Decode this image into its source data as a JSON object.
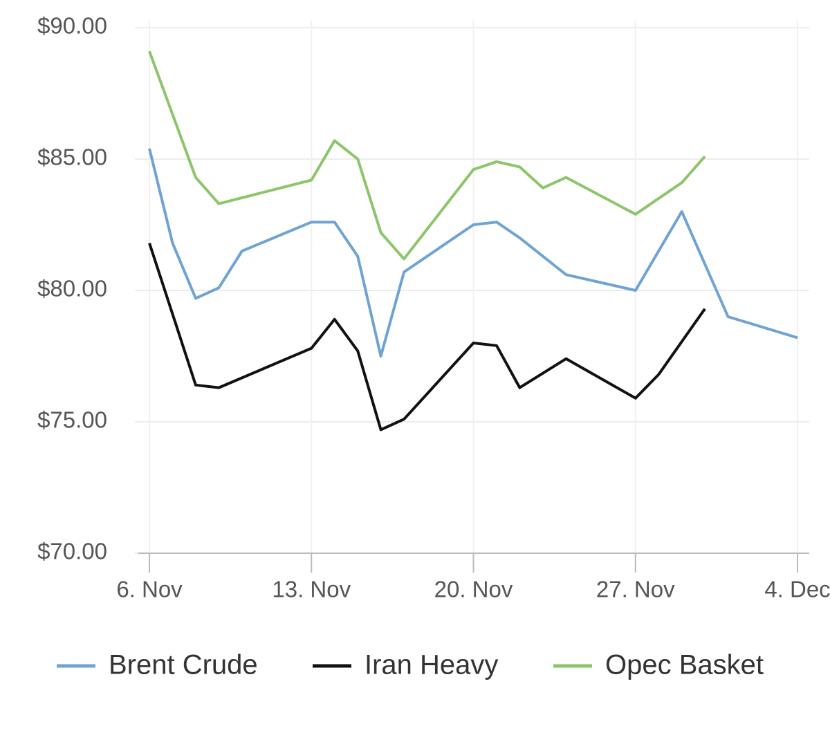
{
  "chart_data": {
    "type": "line",
    "ylim": [
      70,
      90
    ],
    "yticks": [
      {
        "value": 70,
        "label": "$70.00"
      },
      {
        "value": 75,
        "label": "$75.00"
      },
      {
        "value": 80,
        "label": "$80.00"
      },
      {
        "value": 85,
        "label": "$85.00"
      },
      {
        "value": 90,
        "label": "$90.00"
      }
    ],
    "xlim": [
      "11-06",
      "12-04"
    ],
    "xticks": [
      {
        "value": "11-06",
        "label": "6. Nov"
      },
      {
        "value": "11-13",
        "label": "13. Nov"
      },
      {
        "value": "11-20",
        "label": "20. Nov"
      },
      {
        "value": "11-27",
        "label": "27. Nov"
      },
      {
        "value": "12-04",
        "label": "4. Dec"
      }
    ],
    "grid": true,
    "legend": "bottom",
    "series": [
      {
        "name": "Brent Crude",
        "color": "#6fa3d3",
        "x": [
          "11-06",
          "11-07",
          "11-08",
          "11-09",
          "11-10",
          "11-13",
          "11-14",
          "11-15",
          "11-16",
          "11-17",
          "11-20",
          "11-21",
          "11-22",
          "11-24",
          "11-27",
          "11-29",
          "12-01",
          "12-04"
        ],
        "values": [
          85.4,
          81.8,
          79.7,
          80.1,
          81.5,
          82.6,
          82.6,
          81.3,
          77.5,
          80.7,
          82.5,
          82.6,
          82.0,
          80.6,
          80.0,
          83.0,
          79.0,
          78.2
        ]
      },
      {
        "name": "Iran Heavy",
        "color": "#111111",
        "x": [
          "11-06",
          "11-07",
          "11-08",
          "11-09",
          "11-13",
          "11-14",
          "11-15",
          "11-16",
          "11-17",
          "11-20",
          "11-21",
          "11-22",
          "11-24",
          "11-27",
          "11-28",
          "11-30"
        ],
        "values": [
          81.8,
          79.1,
          76.4,
          76.3,
          77.8,
          78.9,
          77.7,
          74.7,
          75.1,
          78.0,
          77.9,
          76.3,
          77.4,
          75.9,
          76.8,
          79.3
        ]
      },
      {
        "name": "Opec Basket",
        "color": "#8cc56a",
        "x": [
          "11-06",
          "11-07",
          "11-08",
          "11-09",
          "11-13",
          "11-14",
          "11-15",
          "11-16",
          "11-17",
          "11-20",
          "11-21",
          "11-22",
          "11-23",
          "11-24",
          "11-27",
          "11-29",
          "11-30"
        ],
        "values": [
          89.1,
          86.7,
          84.3,
          83.3,
          84.2,
          85.7,
          85.0,
          82.2,
          81.2,
          84.6,
          84.9,
          84.7,
          83.9,
          84.3,
          82.9,
          84.1,
          85.1
        ]
      }
    ]
  }
}
